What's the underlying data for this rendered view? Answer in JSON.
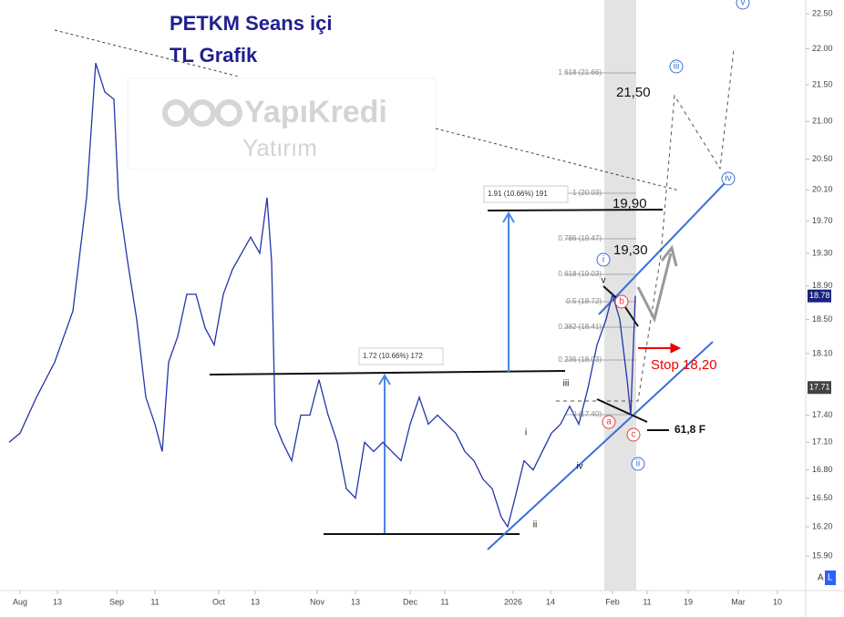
{
  "chart_data": {
    "type": "line",
    "title": [
      "PETKM Seans içi",
      "TL Grafik"
    ],
    "watermark": [
      "YapıKredi",
      "Yatırım"
    ],
    "color": "#2335a8",
    "log_scale": true,
    "x": [
      -2.4,
      0,
      3.6,
      7.6,
      11.6,
      14.6,
      16.6,
      18.6,
      20.6,
      21.6,
      23.6,
      25.6,
      27.6,
      29.6,
      31.2,
      32.6,
      34.6,
      36.6,
      38.6,
      40.6,
      42.6,
      44.6,
      46.6,
      48.6,
      50.6,
      52.6,
      54.2,
      55.2,
      56,
      57.6,
      59.6,
      61.6,
      63.6,
      65.6,
      67.6,
      69.6,
      71.6,
      73.6,
      75.6,
      77.6,
      79.6,
      81.6,
      83.6,
      85.6,
      87.6,
      89.6,
      91.6,
      93.6,
      95.6,
      97.6,
      99.6,
      101.6,
      103.6,
      105.6,
      107,
      108.6,
      110.6,
      112.6,
      114.6,
      116.6,
      118.6,
      120.6,
      122.6,
      124.6,
      126.6,
      128.6,
      130,
      131.6,
      133.2,
      134,
      135
    ],
    "values": [
      17.1,
      17.2,
      17.6,
      18.0,
      18.6,
      20.0,
      21.8,
      21.4,
      21.3,
      20.0,
      19.2,
      18.5,
      17.6,
      17.3,
      17.0,
      18.0,
      18.3,
      18.8,
      18.8,
      18.4,
      18.2,
      18.8,
      19.1,
      19.3,
      19.5,
      19.3,
      20.0,
      19.2,
      17.3,
      17.1,
      16.9,
      17.4,
      17.4,
      17.8,
      17.4,
      17.1,
      16.6,
      16.5,
      17.1,
      17.0,
      17.1,
      17.0,
      16.9,
      17.3,
      17.6,
      17.3,
      17.4,
      17.3,
      17.2,
      17.0,
      16.9,
      16.7,
      16.6,
      16.3,
      16.2,
      16.5,
      16.9,
      16.8,
      17.0,
      17.2,
      17.3,
      17.5,
      17.3,
      17.7,
      18.2,
      18.5,
      18.8,
      18.5,
      17.8,
      17.4,
      18.78
    ],
    "xlim": [
      -4.4,
      171.6
    ],
    "ylim": [
      15.9,
      22.5
    ],
    "xticks": [
      {
        "value": 0,
        "label": "Aug"
      },
      {
        "value": 8.2,
        "label": "13"
      },
      {
        "value": 21.2,
        "label": "Sep"
      },
      {
        "value": 29.6,
        "label": "11"
      },
      {
        "value": 43.6,
        "label": "Oct"
      },
      {
        "value": 51.6,
        "label": "13"
      },
      {
        "value": 65.2,
        "label": "Nov"
      },
      {
        "value": 73.6,
        "label": "13"
      },
      {
        "value": 85.6,
        "label": "Dec"
      },
      {
        "value": 93.2,
        "label": "11"
      },
      {
        "value": 108.2,
        "label": "2026"
      },
      {
        "value": 116.4,
        "label": "14"
      },
      {
        "value": 130,
        "label": "Feb"
      },
      {
        "value": 137.6,
        "label": "11"
      },
      {
        "value": 146.6,
        "label": "19"
      },
      {
        "value": 157.6,
        "label": "Mar"
      },
      {
        "value": 166.2,
        "label": "10"
      }
    ],
    "yticks": [
      {
        "value": 22.5,
        "label": "22.50"
      },
      {
        "value": 22,
        "label": "22.00"
      },
      {
        "value": 21.5,
        "label": "21.50"
      },
      {
        "value": 21,
        "label": "21.00"
      },
      {
        "value": 20.5,
        "label": "20.50"
      },
      {
        "value": 20.1,
        "label": "20.10"
      },
      {
        "value": 19.7,
        "label": "19.70"
      },
      {
        "value": 19.3,
        "label": "19.30"
      },
      {
        "value": 18.9,
        "label": "18.90"
      },
      {
        "value": 18.5,
        "label": "18.50"
      },
      {
        "value": 18.1,
        "label": "18.10"
      },
      {
        "value": 17.4,
        "label": "17.40"
      },
      {
        "value": 17.1,
        "label": "17.10"
      },
      {
        "value": 16.8,
        "label": "16.80"
      },
      {
        "value": 16.5,
        "label": "16.50"
      },
      {
        "value": 16.2,
        "label": "16.20"
      },
      {
        "value": 15.9,
        "label": "15.90"
      }
    ],
    "price_tags": [
      {
        "value": 18.78,
        "label": "18.78"
      },
      {
        "value": 17.71,
        "label": "17.71"
      }
    ],
    "annotations": [
      "21,50",
      "19,90",
      "19,30",
      "Stop 18,20",
      "61,8 F",
      "1.72 (10.66%) 172",
      "1.91 (10.66%) 191",
      "1.618 (21.66)",
      "1 (20.03)",
      "0.786 (19.47)",
      "0.618 (19.03)",
      "0.5 (18.72)",
      "0.382 (18.41)",
      "0.236 (18.03)",
      "0 (17.40)"
    ],
    "wave_labels": [
      "i",
      "ii",
      "iii",
      "iv",
      "v",
      "i",
      "ii",
      "iii",
      "iv",
      "v",
      "a",
      "b",
      "c"
    ],
    "scale_buttons": [
      "A",
      "L"
    ]
  }
}
